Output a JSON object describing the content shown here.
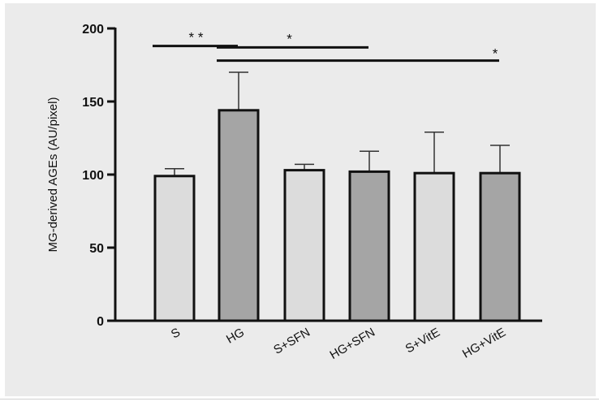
{
  "chart_data": {
    "type": "bar",
    "title": "",
    "xlabel": "",
    "ylabel": "MG-derived AGEs (AU/pixel)",
    "ylim": [
      0,
      200
    ],
    "yticks": [
      0,
      50,
      100,
      150,
      200
    ],
    "grid": false,
    "categories": [
      "S",
      "HG",
      "S+SFN",
      "HG+SFN",
      "S+VitE",
      "HG+VitE"
    ],
    "values": [
      99,
      144,
      103,
      102,
      101,
      101
    ],
    "errors": [
      5,
      26,
      4,
      14,
      28,
      19
    ],
    "bar_colors": [
      "#dcdcdc",
      "#a5a5a5",
      "#dcdcdc",
      "#a5a5a5",
      "#dcdcdc",
      "#a5a5a5"
    ],
    "significance": [
      {
        "from": "S",
        "to": "HG",
        "label": "* *",
        "level": 188
      },
      {
        "from": "HG",
        "to": "HG+SFN",
        "label": "*",
        "level": 187
      },
      {
        "from": "HG",
        "to": "HG+VitE",
        "label": "*",
        "level": 178
      }
    ]
  }
}
